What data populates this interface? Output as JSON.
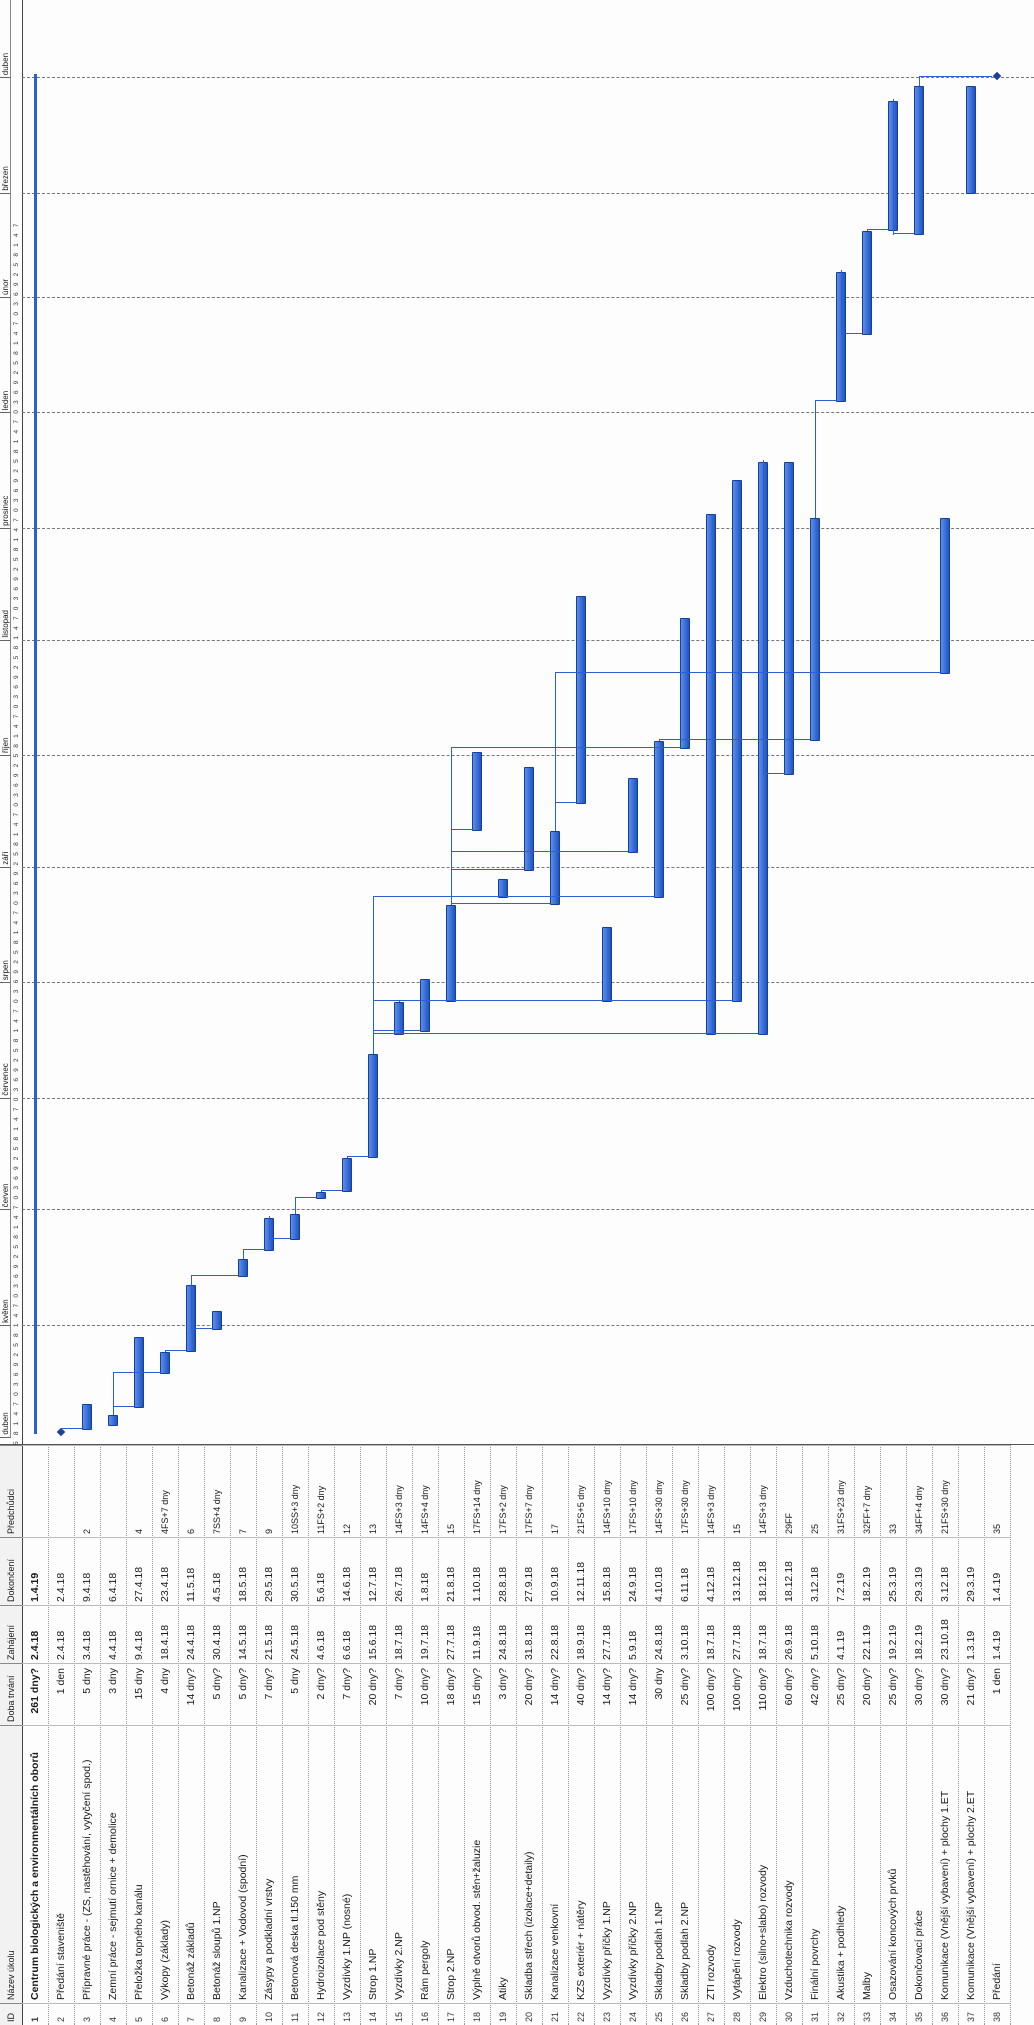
{
  "columns": {
    "id": "ID",
    "name": "Název úkolu",
    "duration": "Doba trvání",
    "start": "Zahájení",
    "finish": "Dokončení",
    "predecessors": "Předchůdci"
  },
  "timeline": {
    "months": [
      "duben",
      "květen",
      "červen",
      "červenec",
      "srpen",
      "září",
      "říjen",
      "listopad",
      "prosinec",
      "leden",
      "únor",
      "březen",
      "duben"
    ],
    "day_ticks": "5 8 1 4 7 0 3 6 9 2 5 8 1 4 7 0 3 6 9 2 5 8 1 4 7 0 3 6 9 2 5 8 1 4 7 0 3 6 9 2 5 8 1 4 7 0 3 6 9 2 5 8 1 4 7 0 3 6 9 2 5 8 1 4 7 0 3 6 9 2 5 8 1 4 7 0 3 6 9 2 5 8 1 4 7 0 3 6 9 2 5 8 1 4 7 0 3 6 9 2 5 8 1 4 7 0 3 6 9 2 5 8 1 4 7 0 3 6 9 2 5 8 1 4 7"
  },
  "tasks": [
    {
      "id": "1",
      "name": "Centrum biologických a environmentálních oborů",
      "duration": "261 dny?",
      "start": "2.4.18",
      "finish": "1.4.19",
      "pred": "",
      "summary": true
    },
    {
      "id": "2",
      "name": "Předání staveniště",
      "duration": "1 den",
      "start": "2.4.18",
      "finish": "2.4.18",
      "pred": ""
    },
    {
      "id": "3",
      "name": "Přípravné práce - (ZS, nastěhování, vytyčení spod.)",
      "duration": "5 dny",
      "start": "3.4.18",
      "finish": "9.4.18",
      "pred": "2"
    },
    {
      "id": "4",
      "name": "Zemní práce - sejmutí ornice + demolice",
      "duration": "3 dny",
      "start": "4.4.18",
      "finish": "6.4.18",
      "pred": ""
    },
    {
      "id": "5",
      "name": "Přeložka topného kanálu",
      "duration": "15 dny",
      "start": "9.4.18",
      "finish": "27.4.18",
      "pred": "4"
    },
    {
      "id": "6",
      "name": "Výkopy (základy)",
      "duration": "4 dny",
      "start": "18.4.18",
      "finish": "23.4.18",
      "pred": "4FS+7 dny"
    },
    {
      "id": "7",
      "name": "Betonáž základů",
      "duration": "14 dny?",
      "start": "24.4.18",
      "finish": "11.5.18",
      "pred": "6"
    },
    {
      "id": "8",
      "name": "Betonáž sloupů 1.NP",
      "duration": "5 dny?",
      "start": "30.4.18",
      "finish": "4.5.18",
      "pred": "7SS+4 dny"
    },
    {
      "id": "9",
      "name": "Kanalizace + Vodovod (spodní)",
      "duration": "5 dny?",
      "start": "14.5.18",
      "finish": "18.5.18",
      "pred": "7"
    },
    {
      "id": "10",
      "name": "Zásypy a podkladní vrstvy",
      "duration": "7 dny?",
      "start": "21.5.18",
      "finish": "29.5.18",
      "pred": "9"
    },
    {
      "id": "11",
      "name": "Betonová deska tl.150 mm",
      "duration": "5 dny",
      "start": "24.5.18",
      "finish": "30.5.18",
      "pred": "10SS+3 dny"
    },
    {
      "id": "12",
      "name": "Hydroizolace pod stěny",
      "duration": "2 dny?",
      "start": "4.6.18",
      "finish": "5.6.18",
      "pred": "11FS+2 dny"
    },
    {
      "id": "13",
      "name": "Vyzdívky 1.NP (nosné)",
      "duration": "7 dny?",
      "start": "6.6.18",
      "finish": "14.6.18",
      "pred": "12"
    },
    {
      "id": "14",
      "name": "Strop 1.NP",
      "duration": "20 dny?",
      "start": "15.6.18",
      "finish": "12.7.18",
      "pred": "13"
    },
    {
      "id": "15",
      "name": "Vyzdívky 2.NP",
      "duration": "7 dny?",
      "start": "18.7.18",
      "finish": "26.7.18",
      "pred": "14FS+3 dny"
    },
    {
      "id": "16",
      "name": "Rám pergoly",
      "duration": "10 dny?",
      "start": "19.7.18",
      "finish": "1.8.18",
      "pred": "14FS+4 dny"
    },
    {
      "id": "17",
      "name": "Strop 2.NP",
      "duration": "18 dny?",
      "start": "27.7.18",
      "finish": "21.8.18",
      "pred": "15"
    },
    {
      "id": "18",
      "name": "Výplně otvorů obvod. stěn+žaluzie",
      "duration": "15 dny?",
      "start": "11.9.18",
      "finish": "1.10.18",
      "pred": "17FS+14 dny"
    },
    {
      "id": "19",
      "name": "Atiky",
      "duration": "3 dny?",
      "start": "24.8.18",
      "finish": "28.8.18",
      "pred": "17FS+2 dny"
    },
    {
      "id": "20",
      "name": "Skladba střech (izolace+detaily)",
      "duration": "20 dny?",
      "start": "31.8.18",
      "finish": "27.9.18",
      "pred": "17FS+7 dny"
    },
    {
      "id": "21",
      "name": "Kanalizace venkovní",
      "duration": "14 dny?",
      "start": "22.8.18",
      "finish": "10.9.18",
      "pred": "17"
    },
    {
      "id": "22",
      "name": "KZS exteriér + nátěry",
      "duration": "40 dny?",
      "start": "18.9.18",
      "finish": "12.11.18",
      "pred": "21FS+5 dny"
    },
    {
      "id": "23",
      "name": "Vyzdívky příčky 1.NP",
      "duration": "14 dny?",
      "start": "27.7.18",
      "finish": "15.8.18",
      "pred": "14FS+10 dny"
    },
    {
      "id": "24",
      "name": "Vyzdívky příčky 2.NP",
      "duration": "14 dny?",
      "start": "5.9.18",
      "finish": "24.9.18",
      "pred": "17FS+10 dny"
    },
    {
      "id": "25",
      "name": "Skladby podlah 1.NP",
      "duration": "30 dny",
      "start": "24.8.18",
      "finish": "4.10.18",
      "pred": "14FS+30 dny"
    },
    {
      "id": "26",
      "name": "Skladby podlah 2.NP",
      "duration": "25 dny?",
      "start": "3.10.18",
      "finish": "6.11.18",
      "pred": "17FS+30 dny"
    },
    {
      "id": "27",
      "name": "ZTI rozvody",
      "duration": "100 dny?",
      "start": "18.7.18",
      "finish": "4.12.18",
      "pred": "14FS+3 dny"
    },
    {
      "id": "28",
      "name": "Vytápění rozvody",
      "duration": "100 dny?",
      "start": "27.7.18",
      "finish": "13.12.18",
      "pred": "15"
    },
    {
      "id": "29",
      "name": "Elektro (silno+slabo) rozvody",
      "duration": "110 dny?",
      "start": "18.7.18",
      "finish": "18.12.18",
      "pred": "14FS+3 dny"
    },
    {
      "id": "30",
      "name": "Vzduchotechnika rozvody",
      "duration": "60 dny?",
      "start": "26.9.18",
      "finish": "18.12.18",
      "pred": "29FF"
    },
    {
      "id": "31",
      "name": "Finální povrchy",
      "duration": "42 dny?",
      "start": "5.10.18",
      "finish": "3.12.18",
      "pred": "25"
    },
    {
      "id": "32",
      "name": "Akustika + podhledy",
      "duration": "25 dny?",
      "start": "4.1.19",
      "finish": "7.2.19",
      "pred": "31FS+23 dny"
    },
    {
      "id": "33",
      "name": "Malby",
      "duration": "20 dny?",
      "start": "22.1.19",
      "finish": "18.2.19",
      "pred": "32FF+7 dny"
    },
    {
      "id": "34",
      "name": "Osazování koncových prvků",
      "duration": "25 dny?",
      "start": "19.2.19",
      "finish": "25.3.19",
      "pred": "33"
    },
    {
      "id": "35",
      "name": "Dokončovací práce",
      "duration": "30 dny?",
      "start": "18.2.19",
      "finish": "29.3.19",
      "pred": "34FF+4 dny"
    },
    {
      "id": "36",
      "name": "Komunikace (Vnější vybavení) + plochy 1.ET",
      "duration": "30 dny?",
      "start": "23.10.18",
      "finish": "3.12.18",
      "pred": "21FS+30 dny"
    },
    {
      "id": "37",
      "name": "Komunikace (Vnější vybavení) + plochy 2.ET",
      "duration": "21 dny?",
      "start": "1.3.19",
      "finish": "29.3.19",
      "pred": ""
    },
    {
      "id": "38",
      "name": "Předání",
      "duration": "1 den",
      "start": "1.4.19",
      "finish": "1.4.19",
      "pred": "35"
    }
  ]
}
